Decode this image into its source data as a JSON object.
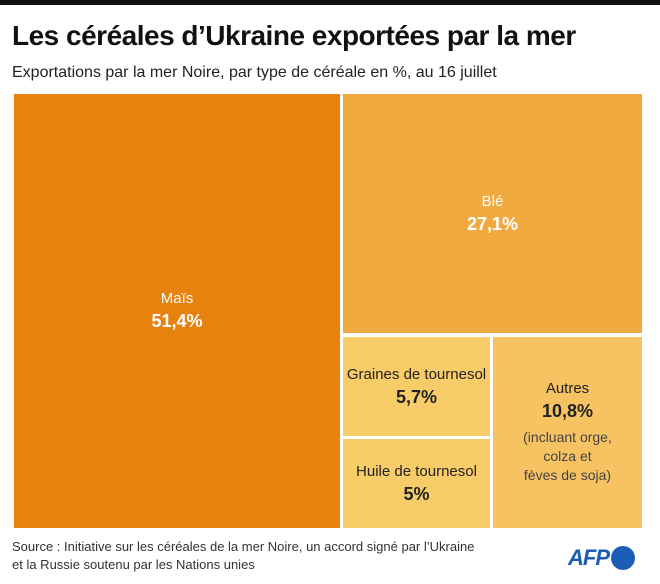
{
  "title": "Les céréales d’Ukraine exportées par la mer",
  "subtitle": "Exportations par la mer Noire, par type de céréale en %, au 16 juillet",
  "chart_data": {
    "type": "treemap",
    "title": "Les céréales d’Ukraine exportées par la mer",
    "subtitle": "Exportations par la mer Noire, par type de céréale en %, au 16 juillet",
    "items": [
      {
        "label": "Maïs",
        "value": 51.4,
        "value_label": "51,4%",
        "color": "#E8820E"
      },
      {
        "label": "Blé",
        "value": 27.1,
        "value_label": "27,1%",
        "color": "#F0AA3F"
      },
      {
        "label": "Graines de tournesol",
        "value": 5.7,
        "value_label": "5,7%",
        "color": "#F8CC68"
      },
      {
        "label": "Huile de tournesol",
        "value": 5,
        "value_label": "5%",
        "color": "#F8CC68"
      },
      {
        "label": "Autres",
        "value": 10.8,
        "value_label": "10,8%",
        "note": "(incluant orge, colza et fèves de soja)",
        "note_lines": [
          "(incluant orge,",
          "colza et",
          "fèves de soja)"
        ],
        "color": "#F6C262"
      }
    ]
  },
  "source_lines": [
    "Source : Initiative sur les céréales de la mer Noire, un accord signé par l’Ukraine",
    "et la Russie soutenu par les Nations unies"
  ],
  "logo": {
    "text": "AFP",
    "color": "#1B5EB5"
  }
}
